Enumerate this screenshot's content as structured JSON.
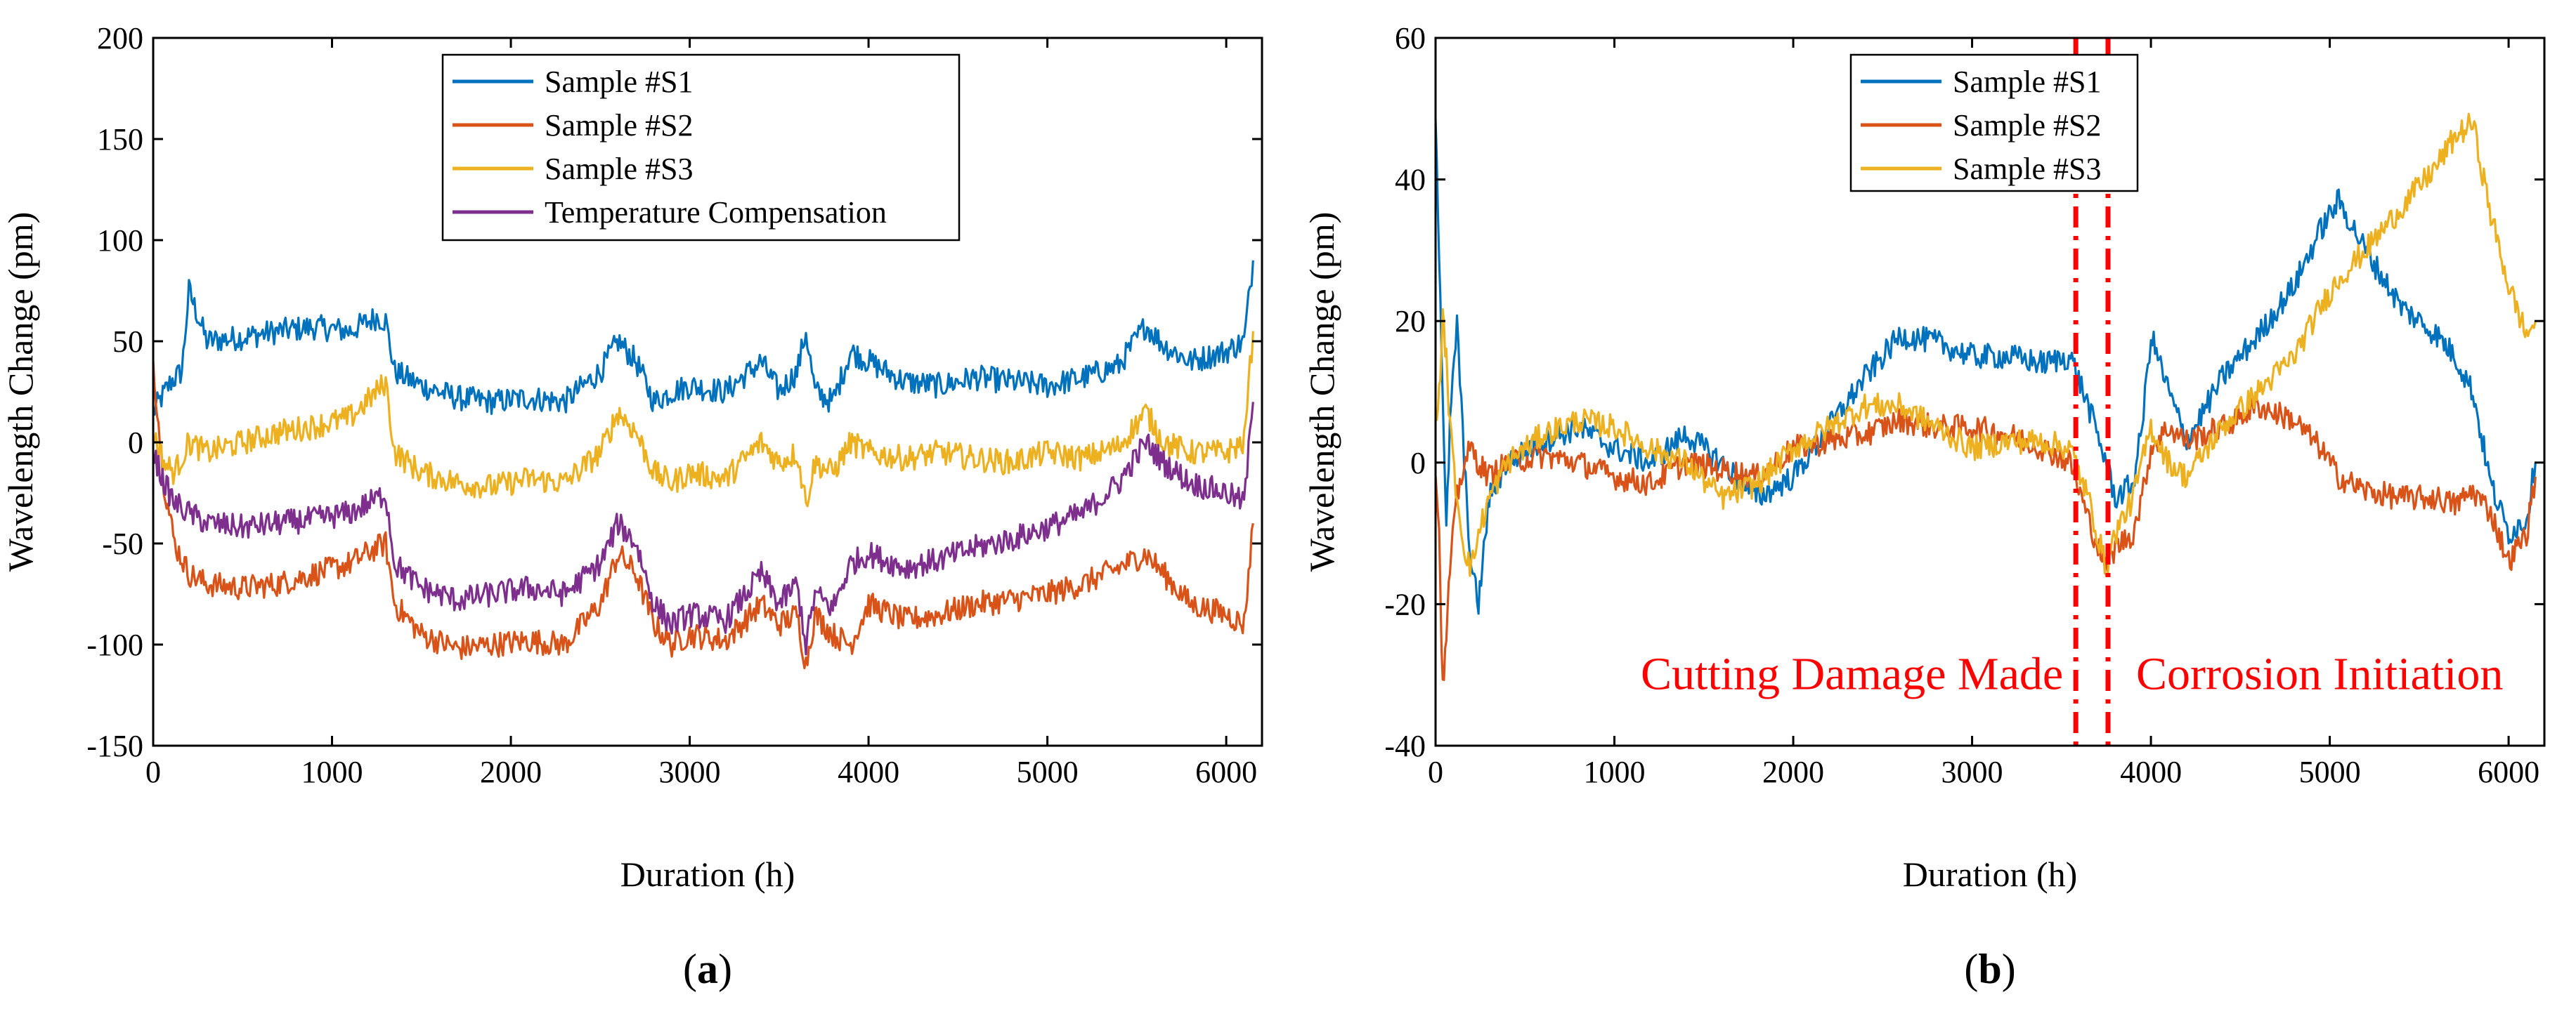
{
  "chart_data": [
    {
      "type": "line",
      "panel_label": "a",
      "xlabel": "Duration (h)",
      "ylabel": "Wavelength Change (pm)",
      "xlim": [
        0,
        6200
      ],
      "ylim": [
        -150,
        200
      ],
      "xticks": [
        0,
        1000,
        2000,
        3000,
        4000,
        5000,
        6000
      ],
      "yticks": [
        -150,
        -100,
        -50,
        0,
        50,
        100,
        150,
        200
      ],
      "xtick_labels": [
        "0",
        "1000",
        "2000",
        "3000",
        "4000",
        "5000",
        "6000"
      ],
      "ytick_labels": [
        "-150",
        "-100",
        "-50",
        "0",
        "50",
        "100",
        "150",
        "200"
      ],
      "legend_position": "top-center",
      "series": [
        {
          "name": "Sample #S1",
          "color": "#0072bd",
          "x": [
            0,
            100,
            160,
            200,
            300,
            500,
            700,
            900,
            1100,
            1250,
            1300,
            1350,
            1500,
            1700,
            1900,
            2100,
            2300,
            2500,
            2600,
            2700,
            2800,
            2900,
            3000,
            3200,
            3400,
            3500,
            3600,
            3650,
            3700,
            3800,
            3900,
            4000,
            4200,
            4400,
            4600,
            4800,
            5000,
            5200,
            5400,
            5550,
            5650,
            5800,
            6000,
            6100,
            6150
          ],
          "y": [
            15,
            30,
            35,
            75,
            50,
            52,
            55,
            57,
            55,
            62,
            60,
            35,
            28,
            22,
            20,
            22,
            20,
            35,
            50,
            40,
            20,
            25,
            28,
            25,
            40,
            25,
            35,
            55,
            25,
            20,
            45,
            40,
            30,
            28,
            32,
            30,
            28,
            32,
            38,
            58,
            48,
            40,
            45,
            50,
            90
          ]
        },
        {
          "name": "Sample #S2",
          "color": "#d95319",
          "x": [
            0,
            60,
            120,
            200,
            300,
            500,
            700,
            900,
            1100,
            1250,
            1300,
            1350,
            1500,
            1700,
            1900,
            2100,
            2300,
            2500,
            2600,
            2700,
            2800,
            2900,
            3000,
            3200,
            3400,
            3500,
            3600,
            3650,
            3700,
            3800,
            3900,
            4000,
            4200,
            4400,
            4600,
            4800,
            5000,
            5200,
            5400,
            5550,
            5650,
            5800,
            6000,
            6100,
            6150
          ],
          "y": [
            40,
            -20,
            -50,
            -65,
            -70,
            -72,
            -70,
            -65,
            -60,
            -52,
            -50,
            -80,
            -95,
            -102,
            -100,
            -98,
            -100,
            -80,
            -55,
            -65,
            -90,
            -100,
            -95,
            -98,
            -80,
            -90,
            -85,
            -110,
            -85,
            -95,
            -100,
            -80,
            -88,
            -85,
            -80,
            -78,
            -75,
            -70,
            -62,
            -55,
            -65,
            -80,
            -85,
            -90,
            -40
          ]
        },
        {
          "name": "Sample #S3",
          "color": "#edb120",
          "x": [
            0,
            60,
            120,
            200,
            300,
            500,
            700,
            900,
            1100,
            1250,
            1300,
            1350,
            1500,
            1700,
            1900,
            2100,
            2300,
            2500,
            2600,
            2700,
            2800,
            2900,
            3000,
            3200,
            3400,
            3500,
            3600,
            3650,
            3700,
            3800,
            3900,
            4000,
            4200,
            4400,
            4600,
            4800,
            5000,
            5200,
            5400,
            5550,
            5650,
            5800,
            6000,
            6100,
            6150
          ],
          "y": [
            5,
            -10,
            -15,
            0,
            -5,
            0,
            5,
            8,
            12,
            25,
            30,
            -5,
            -15,
            -20,
            -22,
            -18,
            -20,
            -5,
            15,
            5,
            -15,
            -20,
            -15,
            -18,
            0,
            -10,
            -5,
            -30,
            -10,
            -15,
            0,
            -5,
            -8,
            -5,
            -8,
            -10,
            -5,
            -8,
            -2,
            15,
            0,
            -5,
            -5,
            0,
            55
          ]
        },
        {
          "name": "Temperature Compensation",
          "color": "#7e2f8e",
          "x": [
            0,
            60,
            120,
            200,
            300,
            500,
            700,
            900,
            1100,
            1250,
            1300,
            1350,
            1500,
            1700,
            1900,
            2100,
            2300,
            2500,
            2600,
            2700,
            2800,
            2900,
            3000,
            3200,
            3400,
            3500,
            3600,
            3650,
            3700,
            3800,
            3900,
            4000,
            4200,
            4400,
            4600,
            4800,
            5000,
            5200,
            5400,
            5550,
            5650,
            5800,
            6000,
            6100,
            6150
          ],
          "y": [
            -5,
            -20,
            -30,
            -35,
            -40,
            -42,
            -40,
            -38,
            -35,
            -28,
            -25,
            -60,
            -72,
            -78,
            -75,
            -72,
            -75,
            -60,
            -40,
            -50,
            -80,
            -90,
            -85,
            -88,
            -65,
            -80,
            -70,
            -100,
            -75,
            -82,
            -60,
            -55,
            -62,
            -58,
            -52,
            -48,
            -42,
            -35,
            -20,
            0,
            -10,
            -20,
            -25,
            -30,
            20
          ]
        }
      ]
    },
    {
      "type": "line",
      "panel_label": "b",
      "xlabel": "Duration (h)",
      "ylabel": "Wavelength Change (pm)",
      "xlim": [
        0,
        6200
      ],
      "ylim": [
        -40,
        60
      ],
      "xticks": [
        0,
        1000,
        2000,
        3000,
        4000,
        5000,
        6000
      ],
      "yticks": [
        -40,
        -20,
        0,
        20,
        40,
        60
      ],
      "xtick_labels": [
        "0",
        "1000",
        "2000",
        "3000",
        "4000",
        "5000",
        "6000"
      ],
      "ytick_labels": [
        "-40",
        "-20",
        "0",
        "20",
        "40",
        "60"
      ],
      "legend_position": "top-center",
      "markers": [
        3580,
        3760
      ],
      "annotations": [
        "Cutting Damage Made",
        "Corrosion Initiation"
      ],
      "series": [
        {
          "name": "Sample #S1",
          "color": "#0072bd",
          "x": [
            0,
            20,
            40,
            60,
            80,
            120,
            160,
            200,
            240,
            300,
            400,
            600,
            800,
            1000,
            1200,
            1400,
            1600,
            1800,
            2000,
            2200,
            2400,
            2600,
            2800,
            3000,
            3200,
            3400,
            3550,
            3650,
            3750,
            3800,
            3900,
            3950,
            4000,
            4100,
            4200,
            4400,
            4600,
            4800,
            4950,
            5050,
            5200,
            5400,
            5600,
            5700,
            5800,
            5900,
            6000,
            6100,
            6150
          ],
          "y": [
            50,
            30,
            10,
            -10,
            5,
            20,
            0,
            -15,
            -20,
            -5,
            0,
            3,
            5,
            2,
            0,
            4,
            0,
            -5,
            -2,
            5,
            12,
            18,
            17,
            15,
            15,
            14,
            15,
            8,
            0,
            -5,
            -3,
            5,
            18,
            10,
            3,
            12,
            18,
            25,
            33,
            37,
            30,
            22,
            18,
            15,
            10,
            -3,
            -10,
            -8,
            0
          ]
        },
        {
          "name": "Sample #S2",
          "color": "#d95319",
          "x": [
            0,
            20,
            40,
            60,
            80,
            120,
            160,
            200,
            240,
            300,
            400,
            600,
            800,
            1000,
            1200,
            1400,
            1600,
            1800,
            2000,
            2200,
            2400,
            2600,
            2800,
            3000,
            3200,
            3400,
            3550,
            3650,
            3750,
            3800,
            3900,
            3950,
            4000,
            4100,
            4200,
            4400,
            4600,
            4800,
            4950,
            5050,
            5200,
            5400,
            5600,
            5700,
            5800,
            5900,
            6000,
            6100,
            6150
          ],
          "y": [
            0,
            -10,
            -32,
            -25,
            -15,
            -5,
            0,
            2,
            0,
            -2,
            0,
            1,
            0,
            -2,
            -3,
            0,
            -1,
            -2,
            2,
            3,
            4,
            6,
            5,
            5,
            4,
            2,
            0,
            -8,
            -15,
            -12,
            -10,
            -5,
            2,
            5,
            3,
            5,
            8,
            6,
            2,
            -2,
            -4,
            -5,
            -5,
            -6,
            -4,
            -7,
            -14,
            -10,
            -2
          ]
        },
        {
          "name": "Sample #S3",
          "color": "#edb120",
          "x": [
            0,
            20,
            40,
            60,
            80,
            120,
            160,
            200,
            240,
            300,
            400,
            600,
            800,
            1000,
            1200,
            1400,
            1600,
            1800,
            2000,
            2200,
            2400,
            2600,
            2800,
            3000,
            3200,
            3400,
            3550,
            3650,
            3750,
            3800,
            3900,
            3950,
            4000,
            4100,
            4200,
            4400,
            4600,
            4800,
            4950,
            5050,
            5200,
            5400,
            5600,
            5700,
            5800,
            5900,
            6000,
            6100,
            6150
          ],
          "y": [
            5,
            10,
            20,
            15,
            5,
            -5,
            -12,
            -15,
            -10,
            -5,
            0,
            4,
            6,
            5,
            2,
            0,
            -5,
            -3,
            2,
            5,
            8,
            8,
            5,
            2,
            3,
            3,
            2,
            -5,
            -15,
            -10,
            -5,
            0,
            5,
            0,
            -2,
            5,
            10,
            15,
            22,
            26,
            30,
            36,
            42,
            46,
            48,
            35,
            25,
            18,
            20
          ]
        }
      ]
    }
  ]
}
